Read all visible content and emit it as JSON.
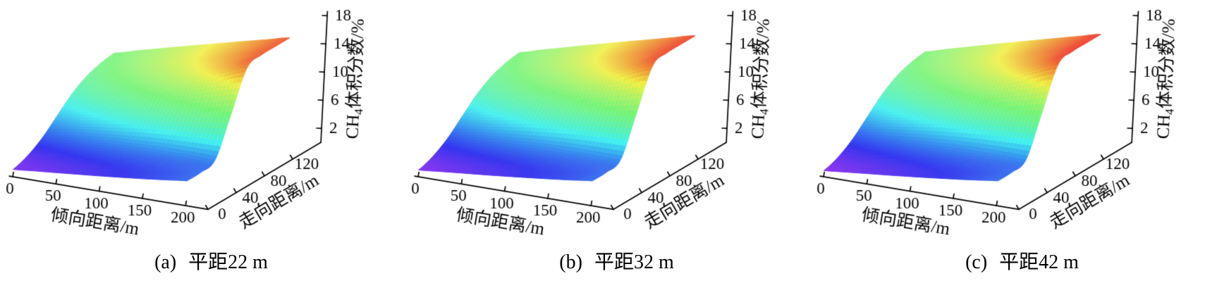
{
  "figure": {
    "background": "#ffffff",
    "panels": [
      {
        "id": "a",
        "caption_prefix": "(a)",
        "caption_label": "平距22 m"
      },
      {
        "id": "b",
        "caption_prefix": "(b)",
        "caption_label": "平距32 m"
      },
      {
        "id": "c",
        "caption_prefix": "(c)",
        "caption_label": "平距42 m"
      }
    ]
  },
  "chart_data": [
    {
      "type": "surface3d",
      "title": "(a) 平距22 m",
      "xlabel": "倾向距离/m",
      "ylabel": "走向距离/m",
      "zlabel": "CH₄体积分数/%",
      "zlabel_parts": {
        "pre": "CH",
        "sub": "4",
        "post": "体积分数/%"
      },
      "x_ticks": [
        0,
        50,
        100,
        150,
        200
      ],
      "y_ticks": [
        0,
        40,
        80,
        120
      ],
      "z_ticks": [
        2,
        6,
        10,
        14,
        18
      ],
      "xlim": [
        0,
        200
      ],
      "ylim": [
        0,
        140
      ],
      "zlim": [
        0,
        18
      ],
      "grid": false,
      "legend": "none",
      "colormap": "rainbow violet-to-red",
      "color_range": [
        0.3,
        16.3
      ],
      "x": [
        0,
        25,
        50,
        75,
        100,
        125,
        150,
        175,
        200
      ],
      "y": [
        0,
        20,
        40,
        60,
        80,
        100,
        120,
        140
      ],
      "z_grid": [
        [
          1.05,
          1.76,
          3.08,
          5.0,
          6.92,
          8.24,
          8.95,
          9.27
        ],
        [
          1.33,
          2.0,
          3.41,
          5.56,
          7.72,
          9.12,
          9.8,
          10.08
        ],
        [
          1.6,
          2.23,
          3.69,
          6.13,
          8.56,
          10.02,
          10.65,
          10.88
        ],
        [
          1.88,
          2.43,
          3.93,
          6.69,
          9.44,
          10.94,
          11.5,
          11.67
        ],
        [
          2.16,
          2.62,
          4.11,
          7.25,
          10.39,
          11.88,
          12.34,
          12.46
        ],
        [
          2.47,
          2.81,
          4.22,
          7.81,
          11.4,
          12.81,
          13.16,
          13.23
        ],
        [
          2.79,
          3.02,
          4.26,
          8.38,
          12.49,
          13.73,
          13.96,
          14.0
        ],
        [
          3.14,
          3.25,
          4.23,
          8.94,
          13.65,
          14.63,
          14.74,
          14.75
        ],
        [
          3.5,
          3.54,
          4.15,
          9.5,
          14.85,
          15.46,
          15.5,
          15.5
        ]
      ]
    },
    {
      "type": "surface3d",
      "title": "(b) 平距32 m",
      "xlabel": "倾向距离/m",
      "ylabel": "走向距离/m",
      "zlabel": "CH₄体积分数/%",
      "zlabel_parts": {
        "pre": "CH",
        "sub": "4",
        "post": "体积分数/%"
      },
      "x_ticks": [
        0,
        50,
        100,
        150,
        200
      ],
      "y_ticks": [
        0,
        40,
        80,
        120
      ],
      "z_ticks": [
        2,
        6,
        10,
        14,
        18
      ],
      "xlim": [
        0,
        200
      ],
      "ylim": [
        0,
        140
      ],
      "zlim": [
        0,
        18
      ],
      "grid": false,
      "legend": "none",
      "colormap": "rainbow violet-to-red",
      "color_range": [
        0.3,
        16.3
      ],
      "x": [
        0,
        25,
        50,
        75,
        100,
        125,
        150,
        175,
        200
      ],
      "y": [
        0,
        20,
        40,
        60,
        80,
        100,
        120,
        140
      ],
      "z_grid": [
        [
          0.96,
          1.69,
          3.04,
          5.0,
          6.96,
          8.31,
          9.04,
          9.36
        ],
        [
          1.25,
          1.95,
          3.38,
          5.59,
          7.79,
          9.22,
          9.92,
          10.2
        ],
        [
          1.54,
          2.18,
          3.68,
          6.17,
          8.65,
          10.15,
          10.79,
          11.03
        ],
        [
          1.82,
          2.39,
          3.92,
          6.75,
          9.57,
          11.1,
          11.67,
          11.86
        ],
        [
          2.12,
          2.59,
          4.11,
          7.33,
          10.54,
          12.06,
          12.53,
          12.66
        ],
        [
          2.44,
          2.79,
          4.23,
          7.91,
          11.58,
          13.03,
          13.38,
          13.46
        ],
        [
          2.77,
          3.0,
          4.28,
          8.49,
          12.7,
          13.98,
          14.21,
          14.24
        ],
        [
          3.12,
          3.24,
          4.24,
          9.07,
          13.9,
          14.9,
          15.02,
          15.03
        ],
        [
          3.5,
          3.54,
          4.17,
          9.65,
          15.13,
          15.76,
          15.8,
          15.8
        ]
      ]
    },
    {
      "type": "surface3d",
      "title": "(c) 平距42 m",
      "xlabel": "倾向距离/m",
      "ylabel": "走向距离/m",
      "zlabel": "CH₄体积分数/%",
      "zlabel_parts": {
        "pre": "CH",
        "sub": "4",
        "post": "体积分数/%"
      },
      "x_ticks": [
        0,
        50,
        100,
        150,
        200
      ],
      "y_ticks": [
        0,
        40,
        80,
        120
      ],
      "z_ticks": [
        2,
        6,
        10,
        14,
        18
      ],
      "xlim": [
        0,
        200
      ],
      "ylim": [
        0,
        140
      ],
      "zlim": [
        0,
        18
      ],
      "grid": false,
      "legend": "none",
      "colormap": "rainbow violet-to-red",
      "color_range": [
        0.3,
        16.3
      ],
      "x": [
        0,
        25,
        50,
        75,
        100,
        125,
        150,
        175,
        200
      ],
      "y": [
        0,
        20,
        40,
        60,
        80,
        100,
        120,
        140
      ],
      "z_grid": [
        [
          0.88,
          1.61,
          3.0,
          5.0,
          7.0,
          8.39,
          9.12,
          9.46
        ],
        [
          1.17,
          1.88,
          3.35,
          5.6,
          7.84,
          9.31,
          10.02,
          10.31
        ],
        [
          1.47,
          2.12,
          3.65,
          6.19,
          8.73,
          10.26,
          10.91,
          11.15
        ],
        [
          1.76,
          2.34,
          3.9,
          6.78,
          9.66,
          11.22,
          11.8,
          11.98
        ],
        [
          2.07,
          2.55,
          4.1,
          7.38,
          10.65,
          12.2,
          12.68,
          12.81
        ],
        [
          2.4,
          2.76,
          4.23,
          7.97,
          11.71,
          13.18,
          13.54,
          13.62
        ],
        [
          2.74,
          2.98,
          4.28,
          8.57,
          12.85,
          14.15,
          14.39,
          14.42
        ],
        [
          3.11,
          3.23,
          4.25,
          9.16,
          14.06,
          15.08,
          15.2,
          15.21
        ],
        [
          3.5,
          3.54,
          4.18,
          9.75,
          15.32,
          15.96,
          16.0,
          16.0
        ]
      ]
    }
  ]
}
